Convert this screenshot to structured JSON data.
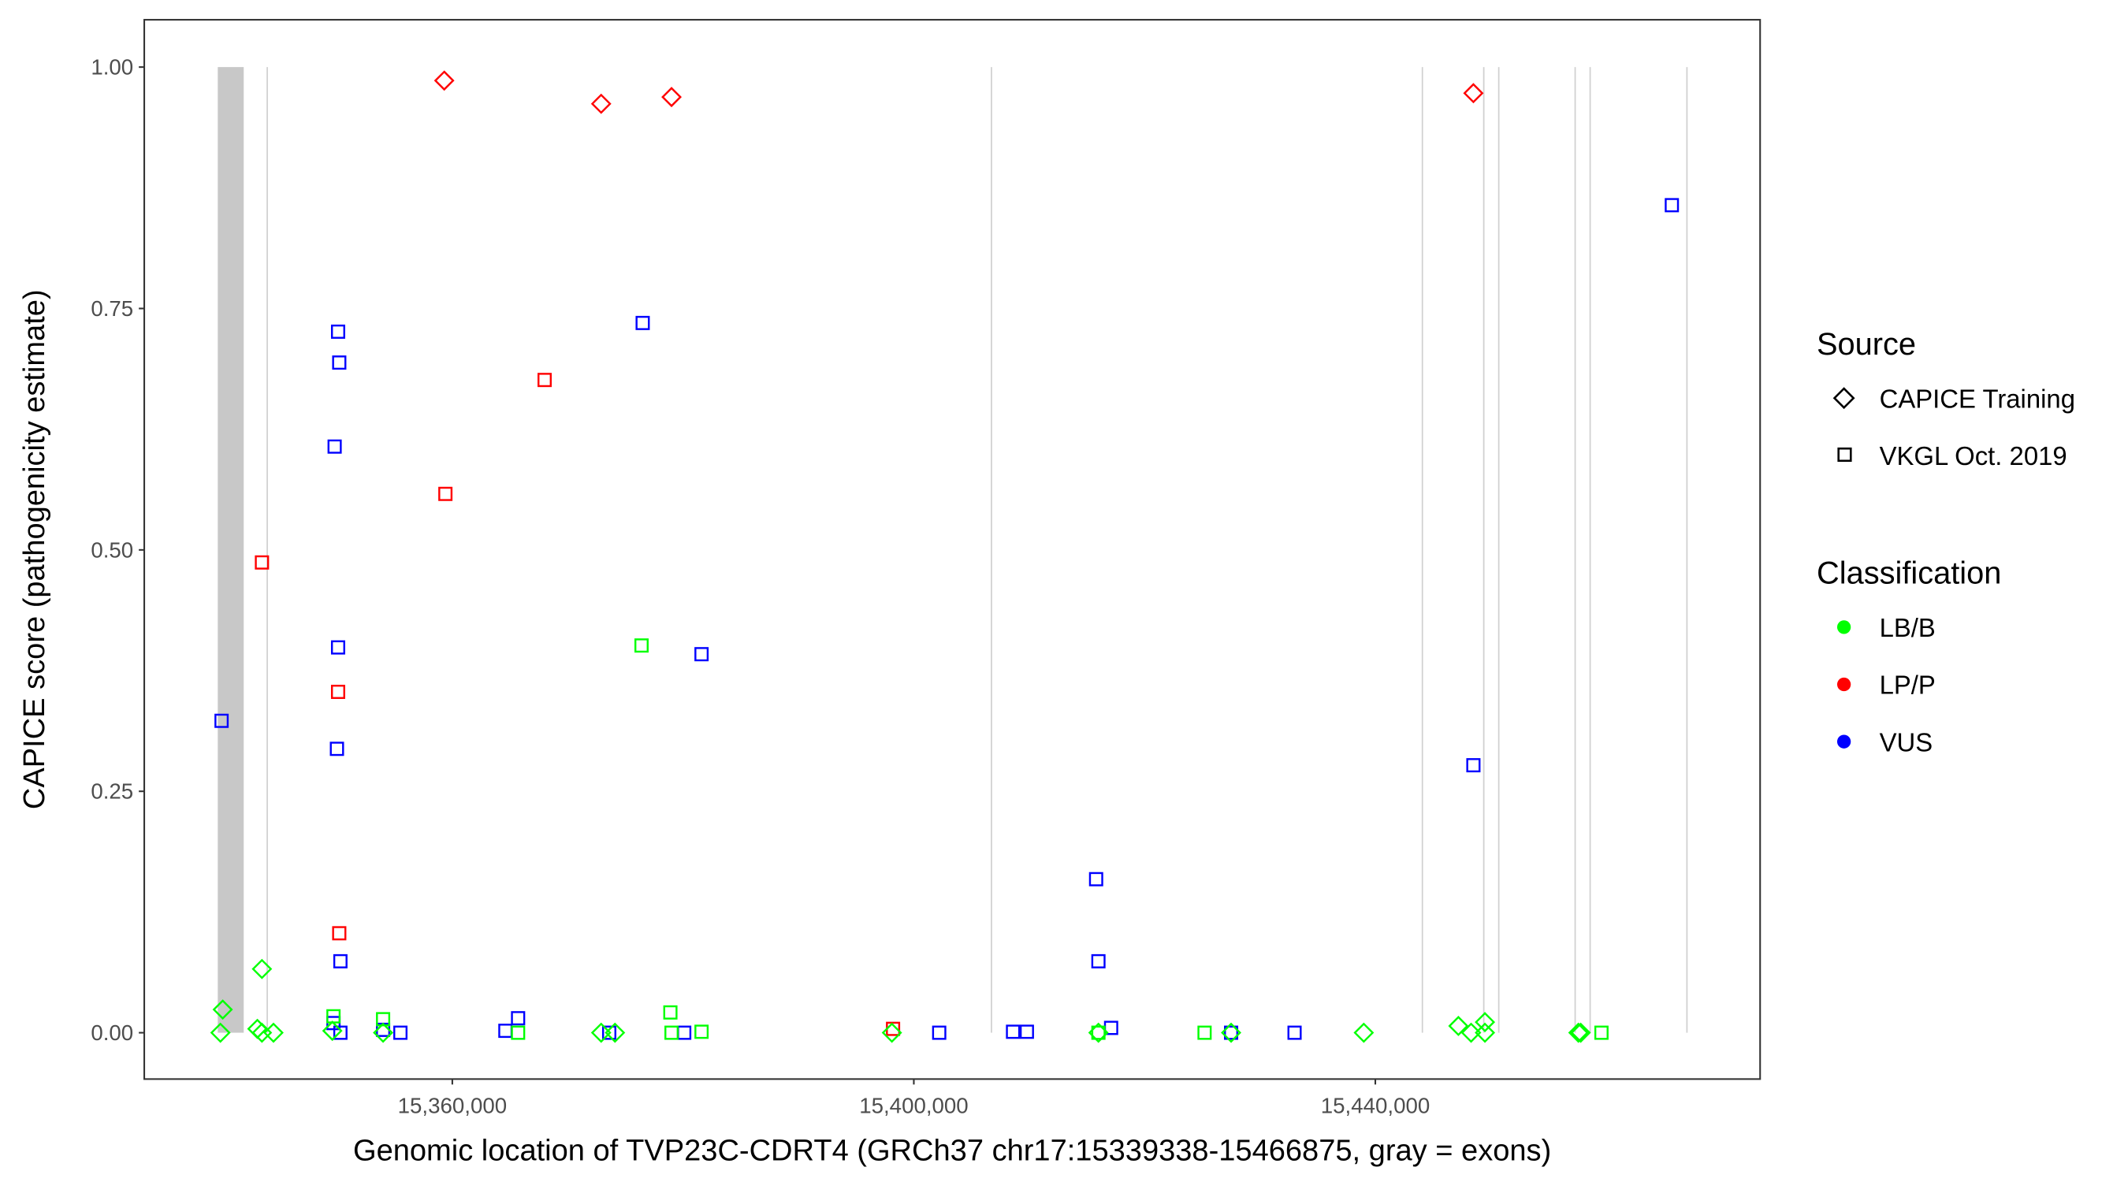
{
  "chart_data": {
    "type": "scatter",
    "xlabel": "Genomic location of TVP23C-CDRT4 (GRCh37 chr17:15339338-15466875, gray = exons)",
    "ylabel": "CAPICE score (pathogenicity estimate)",
    "xlim": [
      15333300,
      15473350
    ],
    "ylim": [
      -0.048,
      1.049
    ],
    "x_ticks": [
      15360000,
      15400000,
      15440000
    ],
    "x_tick_labels": [
      "15,360,000",
      "15,400,000",
      "15,440,000"
    ],
    "y_ticks": [
      0,
      0.25,
      0.5,
      0.75,
      1.0
    ],
    "y_tick_labels": [
      "0.00",
      "0.25",
      "0.50",
      "0.75",
      "1.00"
    ],
    "grid": false,
    "exons": [
      [
        15339670,
        15341920
      ],
      [
        15343900,
        15343950
      ],
      [
        15406670,
        15406710
      ],
      [
        15444020,
        15444060
      ],
      [
        15449340,
        15449380
      ],
      [
        15450640,
        15450680
      ],
      [
        15457260,
        15457300
      ],
      [
        15458560,
        15458600
      ],
      [
        15466950,
        15466990
      ]
    ],
    "legend": {
      "placement": "right",
      "source_title": "Source",
      "source_items": [
        {
          "label": "CAPICE Training",
          "shape": "diamond"
        },
        {
          "label": "VKGL Oct. 2019",
          "shape": "square"
        }
      ],
      "class_title": "Classification",
      "class_items": [
        {
          "label": "LB/B",
          "color": "#00ff00"
        },
        {
          "label": "LP/P",
          "color": "#ff0000"
        },
        {
          "label": "VUS",
          "color": "#0000ff"
        }
      ]
    },
    "colors": {
      "LB/B": "#00ff00",
      "LP/P": "#ff0000",
      "VUS": "#0000ff"
    },
    "points": [
      {
        "x": 15359300,
        "y": 0.986,
        "source": "CAPICE Training",
        "class": "LP/P"
      },
      {
        "x": 15372900,
        "y": 0.962,
        "source": "CAPICE Training",
        "class": "LP/P"
      },
      {
        "x": 15379000,
        "y": 0.969,
        "source": "CAPICE Training",
        "class": "LP/P"
      },
      {
        "x": 15448500,
        "y": 0.973,
        "source": "CAPICE Training",
        "class": "LP/P"
      },
      {
        "x": 15343500,
        "y": 0.487,
        "source": "VKGL Oct. 2019",
        "class": "LP/P"
      },
      {
        "x": 15359400,
        "y": 0.558,
        "source": "VKGL Oct. 2019",
        "class": "LP/P"
      },
      {
        "x": 15368000,
        "y": 0.676,
        "source": "VKGL Oct. 2019",
        "class": "LP/P"
      },
      {
        "x": 15350100,
        "y": 0.353,
        "source": "VKGL Oct. 2019",
        "class": "LP/P"
      },
      {
        "x": 15350200,
        "y": 0.103,
        "source": "VKGL Oct. 2019",
        "class": "LP/P"
      },
      {
        "x": 15398200,
        "y": 0.004,
        "source": "VKGL Oct. 2019",
        "class": "LP/P"
      },
      {
        "x": 15465700,
        "y": 0.857,
        "source": "VKGL Oct. 2019",
        "class": "VUS"
      },
      {
        "x": 15350100,
        "y": 0.726,
        "source": "VKGL Oct. 2019",
        "class": "VUS"
      },
      {
        "x": 15350200,
        "y": 0.694,
        "source": "VKGL Oct. 2019",
        "class": "VUS"
      },
      {
        "x": 15376500,
        "y": 0.735,
        "source": "VKGL Oct. 2019",
        "class": "VUS"
      },
      {
        "x": 15349800,
        "y": 0.607,
        "source": "VKGL Oct. 2019",
        "class": "VUS"
      },
      {
        "x": 15350100,
        "y": 0.399,
        "source": "VKGL Oct. 2019",
        "class": "VUS"
      },
      {
        "x": 15381600,
        "y": 0.392,
        "source": "VKGL Oct. 2019",
        "class": "VUS"
      },
      {
        "x": 15340000,
        "y": 0.323,
        "source": "VKGL Oct. 2019",
        "class": "VUS"
      },
      {
        "x": 15350000,
        "y": 0.294,
        "source": "VKGL Oct. 2019",
        "class": "VUS"
      },
      {
        "x": 15448500,
        "y": 0.277,
        "source": "VKGL Oct. 2019",
        "class": "VUS"
      },
      {
        "x": 15415800,
        "y": 0.159,
        "source": "VKGL Oct. 2019",
        "class": "VUS"
      },
      {
        "x": 15416000,
        "y": 0.074,
        "source": "VKGL Oct. 2019",
        "class": "VUS"
      },
      {
        "x": 15350300,
        "y": 0.074,
        "source": "VKGL Oct. 2019",
        "class": "VUS"
      },
      {
        "x": 15349700,
        "y": 0.01,
        "source": "VKGL Oct. 2019",
        "class": "VUS"
      },
      {
        "x": 15350300,
        "y": 0.0,
        "source": "VKGL Oct. 2019",
        "class": "VUS"
      },
      {
        "x": 15354000,
        "y": 0.003,
        "source": "VKGL Oct. 2019",
        "class": "VUS"
      },
      {
        "x": 15355500,
        "y": 0.0,
        "source": "VKGL Oct. 2019",
        "class": "VUS"
      },
      {
        "x": 15364600,
        "y": 0.002,
        "source": "VKGL Oct. 2019",
        "class": "VUS"
      },
      {
        "x": 15365700,
        "y": 0.015,
        "source": "VKGL Oct. 2019",
        "class": "VUS"
      },
      {
        "x": 15373600,
        "y": 0.0,
        "source": "VKGL Oct. 2019",
        "class": "VUS"
      },
      {
        "x": 15380100,
        "y": 0.0,
        "source": "VKGL Oct. 2019",
        "class": "VUS"
      },
      {
        "x": 15402200,
        "y": 0.0,
        "source": "VKGL Oct. 2019",
        "class": "VUS"
      },
      {
        "x": 15408600,
        "y": 0.001,
        "source": "VKGL Oct. 2019",
        "class": "VUS"
      },
      {
        "x": 15409800,
        "y": 0.001,
        "source": "VKGL Oct. 2019",
        "class": "VUS"
      },
      {
        "x": 15417100,
        "y": 0.005,
        "source": "VKGL Oct. 2019",
        "class": "VUS"
      },
      {
        "x": 15427500,
        "y": 0.0,
        "source": "VKGL Oct. 2019",
        "class": "VUS"
      },
      {
        "x": 15433000,
        "y": 0.0,
        "source": "VKGL Oct. 2019",
        "class": "VUS"
      },
      {
        "x": 15376400,
        "y": 0.401,
        "source": "VKGL Oct. 2019",
        "class": "LB/B"
      },
      {
        "x": 15349700,
        "y": 0.017,
        "source": "VKGL Oct. 2019",
        "class": "LB/B"
      },
      {
        "x": 15354000,
        "y": 0.014,
        "source": "VKGL Oct. 2019",
        "class": "LB/B"
      },
      {
        "x": 15365700,
        "y": 0.0,
        "source": "VKGL Oct. 2019",
        "class": "LB/B"
      },
      {
        "x": 15378900,
        "y": 0.021,
        "source": "VKGL Oct. 2019",
        "class": "LB/B"
      },
      {
        "x": 15379000,
        "y": 0.0,
        "source": "VKGL Oct. 2019",
        "class": "LB/B"
      },
      {
        "x": 15381600,
        "y": 0.001,
        "source": "VKGL Oct. 2019",
        "class": "LB/B"
      },
      {
        "x": 15425200,
        "y": 0.0,
        "source": "VKGL Oct. 2019",
        "class": "LB/B"
      },
      {
        "x": 15459600,
        "y": 0.0,
        "source": "VKGL Oct. 2019",
        "class": "LB/B"
      },
      {
        "x": 15416000,
        "y": 0.0,
        "source": "VKGL Oct. 2019",
        "class": "LB/B"
      },
      {
        "x": 15343500,
        "y": 0.066,
        "source": "CAPICE Training",
        "class": "LB/B"
      },
      {
        "x": 15340100,
        "y": 0.024,
        "source": "CAPICE Training",
        "class": "LB/B"
      },
      {
        "x": 15339900,
        "y": 0.0,
        "source": "CAPICE Training",
        "class": "LB/B"
      },
      {
        "x": 15343100,
        "y": 0.004,
        "source": "CAPICE Training",
        "class": "LB/B"
      },
      {
        "x": 15343500,
        "y": 0.0,
        "source": "CAPICE Training",
        "class": "LB/B"
      },
      {
        "x": 15344500,
        "y": 0.0,
        "source": "CAPICE Training",
        "class": "LB/B"
      },
      {
        "x": 15349600,
        "y": 0.002,
        "source": "CAPICE Training",
        "class": "LB/B"
      },
      {
        "x": 15354000,
        "y": 0.0,
        "source": "CAPICE Training",
        "class": "LB/B"
      },
      {
        "x": 15372900,
        "y": 0.0,
        "source": "CAPICE Training",
        "class": "LB/B"
      },
      {
        "x": 15374100,
        "y": 0.0,
        "source": "CAPICE Training",
        "class": "LB/B"
      },
      {
        "x": 15398100,
        "y": 0.0,
        "source": "CAPICE Training",
        "class": "LB/B"
      },
      {
        "x": 15416000,
        "y": 0.0,
        "source": "CAPICE Training",
        "class": "LB/B"
      },
      {
        "x": 15427500,
        "y": 0.0,
        "source": "CAPICE Training",
        "class": "LB/B"
      },
      {
        "x": 15439000,
        "y": 0.0,
        "source": "CAPICE Training",
        "class": "LB/B"
      },
      {
        "x": 15447200,
        "y": 0.007,
        "source": "CAPICE Training",
        "class": "LB/B"
      },
      {
        "x": 15448300,
        "y": 0.0,
        "source": "CAPICE Training",
        "class": "LB/B"
      },
      {
        "x": 15449500,
        "y": 0.011,
        "source": "CAPICE Training",
        "class": "LB/B"
      },
      {
        "x": 15449500,
        "y": 0.0,
        "source": "CAPICE Training",
        "class": "LB/B"
      },
      {
        "x": 15457600,
        "y": 0.0,
        "source": "CAPICE Training",
        "class": "LB/B"
      },
      {
        "x": 15457800,
        "y": 0.0,
        "source": "CAPICE Training",
        "class": "LB/B"
      }
    ]
  }
}
